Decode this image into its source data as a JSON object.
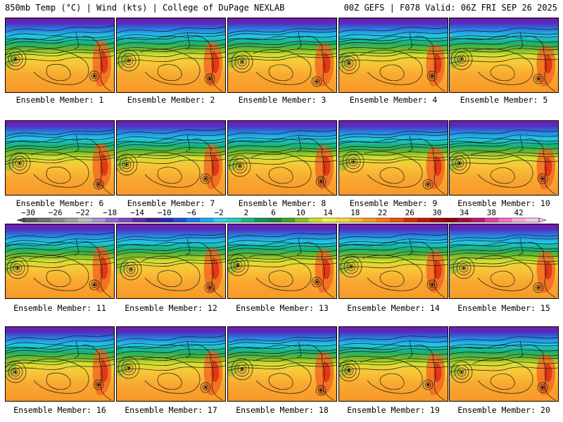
{
  "header": {
    "left": "850mb Temp (°C) | Wind (kts) | College of DuPage NEXLAB",
    "right": "00Z GEFS | F078 Valid: 06Z FRI SEP 26 2025"
  },
  "panels": [
    {
      "label": "Ensemble Member: 1"
    },
    {
      "label": "Ensemble Member: 2"
    },
    {
      "label": "Ensemble Member: 3"
    },
    {
      "label": "Ensemble Member: 4"
    },
    {
      "label": "Ensemble Member: 5"
    },
    {
      "label": "Ensemble Member: 6"
    },
    {
      "label": "Ensemble Member: 7"
    },
    {
      "label": "Ensemble Member: 8"
    },
    {
      "label": "Ensemble Member: 9"
    },
    {
      "label": "Ensemble Member: 10"
    },
    {
      "label": "Ensemble Member: 11"
    },
    {
      "label": "Ensemble Member: 12"
    },
    {
      "label": "Ensemble Member: 13"
    },
    {
      "label": "Ensemble Member: 14"
    },
    {
      "label": "Ensemble Member: 15"
    },
    {
      "label": "Ensemble Member: 16"
    },
    {
      "label": "Ensemble Member: 17"
    },
    {
      "label": "Ensemble Member: 18"
    },
    {
      "label": "Ensemble Member: 19"
    },
    {
      "label": "Ensemble Member: 20"
    }
  ],
  "colorbar": {
    "ticks": [
      "−30",
      "−26",
      "−22",
      "−18",
      "−14",
      "−10",
      "−6",
      "−2",
      "2",
      "6",
      "10",
      "14",
      "18",
      "22",
      "26",
      "30",
      "34",
      "38",
      "42"
    ],
    "colors": [
      "#5a5a5a",
      "#707070",
      "#888888",
      "#a0a0a0",
      "#bcbcbc",
      "#b090d8",
      "#9868d0",
      "#8048c8",
      "#6428b0",
      "#4a1898",
      "#2a2ab0",
      "#2050d8",
      "#1878e8",
      "#20a8f0",
      "#30d0f0",
      "#20d0c0",
      "#18b888",
      "#109858",
      "#208838",
      "#48a028",
      "#88c020",
      "#c8e020",
      "#f8f040",
      "#f8d838",
      "#f8b830",
      "#f89820",
      "#f87818",
      "#f05010",
      "#e02808",
      "#c81008",
      "#a80808",
      "#880810",
      "#a01040",
      "#c01870",
      "#e040a0",
      "#f070c8",
      "#f8a8e0",
      "#f8c8f0"
    ]
  }
}
